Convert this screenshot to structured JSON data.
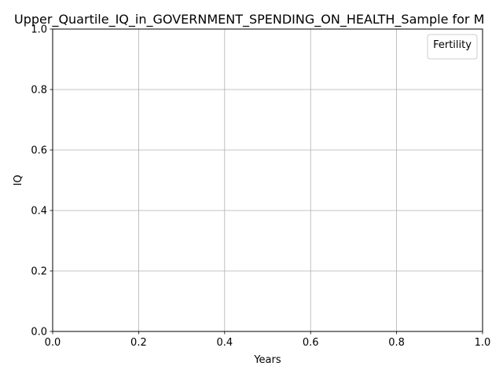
{
  "chart_data": {
    "type": "line",
    "title": "Upper_Quartile_IQ_in_GOVERNMENT_SPENDING_ON_HEALTH_Sample for M",
    "xlabel": "Years",
    "ylabel": "IQ",
    "xlim": [
      0.0,
      1.0
    ],
    "ylim": [
      0.0,
      1.0
    ],
    "x_ticks": [
      "0.0",
      "0.2",
      "0.4",
      "0.6",
      "0.8",
      "1.0"
    ],
    "y_ticks": [
      "0.0",
      "0.2",
      "0.4",
      "0.6",
      "0.8",
      "1.0"
    ],
    "grid": true,
    "legend": {
      "title": "Fertility",
      "placement": "top-right",
      "entries": []
    },
    "series": []
  }
}
